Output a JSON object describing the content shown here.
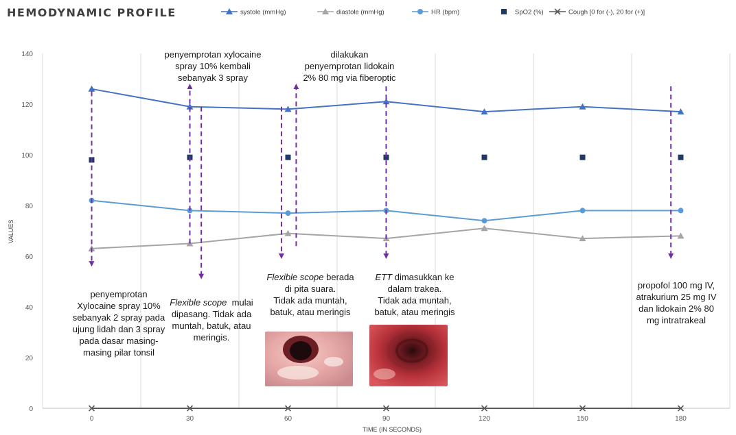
{
  "chart_data": {
    "type": "line",
    "title": "HEMODYNAMIC PROFILE",
    "xlabel": "TIME (IN SECONDS)",
    "ylabel": "VALUES",
    "x": [
      0,
      30,
      60,
      90,
      120,
      150,
      180
    ],
    "xlim": [
      -15,
      195
    ],
    "ylim": [
      0,
      140
    ],
    "yticks": [
      0,
      20,
      40,
      60,
      80,
      100,
      120,
      140
    ],
    "grid": "vertical",
    "legend": "top",
    "series": [
      {
        "name": "systole (mmHg)",
        "values": [
          126,
          119,
          118,
          121,
          117,
          119,
          117
        ],
        "color": "#4472C4",
        "marker": "triangle",
        "line": true
      },
      {
        "name": "diastole (mmHg)",
        "values": [
          63,
          65,
          69,
          67,
          71,
          67,
          68
        ],
        "color": "#A5A5A5",
        "marker": "triangle",
        "line": true
      },
      {
        "name": "HR (bpm)",
        "values": [
          82,
          78,
          77,
          78,
          74,
          78,
          78
        ],
        "color": "#5B9BD5",
        "marker": "circle",
        "line": true
      },
      {
        "name": "SpO2 (%)",
        "values": [
          98,
          99,
          99,
          99,
          99,
          99,
          99
        ],
        "color": "#1F3864",
        "marker": "square",
        "line": false
      },
      {
        "name": "Cough [0 for (-), 20 for (+)]",
        "values": [
          0,
          0,
          0,
          0,
          0,
          0,
          0
        ],
        "color": "#595959",
        "marker": "x",
        "line": true
      }
    ],
    "arrow_color": "#7030A0",
    "annotations": [
      {
        "id": "ann-0",
        "lines": [
          [
            {
              "t": "penyemprotan"
            }
          ],
          [
            {
              "t": "Xylocaine spray 10%"
            }
          ],
          [
            {
              "t": "sebanyak 2 spray pada"
            }
          ],
          [
            {
              "t": "ujung lidah dan 3 spray"
            }
          ],
          [
            {
              "t": "pada dasar masing-"
            }
          ],
          [
            {
              "t": "masing pilar tonsil"
            }
          ]
        ]
      },
      {
        "id": "ann-30-top",
        "lines": [
          [
            {
              "t": "penyemprotan xylocaine"
            }
          ],
          [
            {
              "t": "spray 10% kembali"
            }
          ],
          [
            {
              "t": "sebanyak 3 spray"
            }
          ]
        ]
      },
      {
        "id": "ann-30-bottom",
        "lines": [
          [
            {
              "t": "Flexible scope",
              "i": true
            },
            {
              "t": "  mulai"
            }
          ],
          [
            {
              "t": "dipasang. Tidak ada"
            }
          ],
          [
            {
              "t": "muntah, batuk, atau"
            }
          ],
          [
            {
              "t": "meringis."
            }
          ]
        ]
      },
      {
        "id": "ann-60",
        "lines": [
          [
            {
              "t": "Flexible scope",
              "i": true
            },
            {
              "t": " berada"
            }
          ],
          [
            {
              "t": "di pita suara."
            }
          ],
          [
            {
              "t": "Tidak ada muntah,"
            }
          ],
          [
            {
              "t": "batuk, atau meringis"
            }
          ]
        ]
      },
      {
        "id": "ann-75-top",
        "lines": [
          [
            {
              "t": "dilakukan"
            }
          ],
          [
            {
              "t": "penyemprotan lidokain"
            }
          ],
          [
            {
              "t": "2% 80 mg via fiberoptic"
            }
          ]
        ]
      },
      {
        "id": "ann-90",
        "lines": [
          [
            {
              "t": "ETT",
              "i": true
            },
            {
              "t": " dimasukkan ke"
            }
          ],
          [
            {
              "t": "dalam trakea."
            }
          ],
          [
            {
              "t": "Tidak ada muntah,"
            }
          ],
          [
            {
              "t": "batuk, atau meringis"
            }
          ]
        ]
      },
      {
        "id": "ann-180",
        "lines": [
          [
            {
              "t": "propofol 100 mg IV,"
            }
          ],
          [
            {
              "t": "atrakurium 25 mg IV"
            }
          ],
          [
            {
              "t": "dan lidokain 2% 80"
            }
          ],
          [
            {
              "t": "mg intratrakeal"
            }
          ]
        ]
      }
    ]
  }
}
